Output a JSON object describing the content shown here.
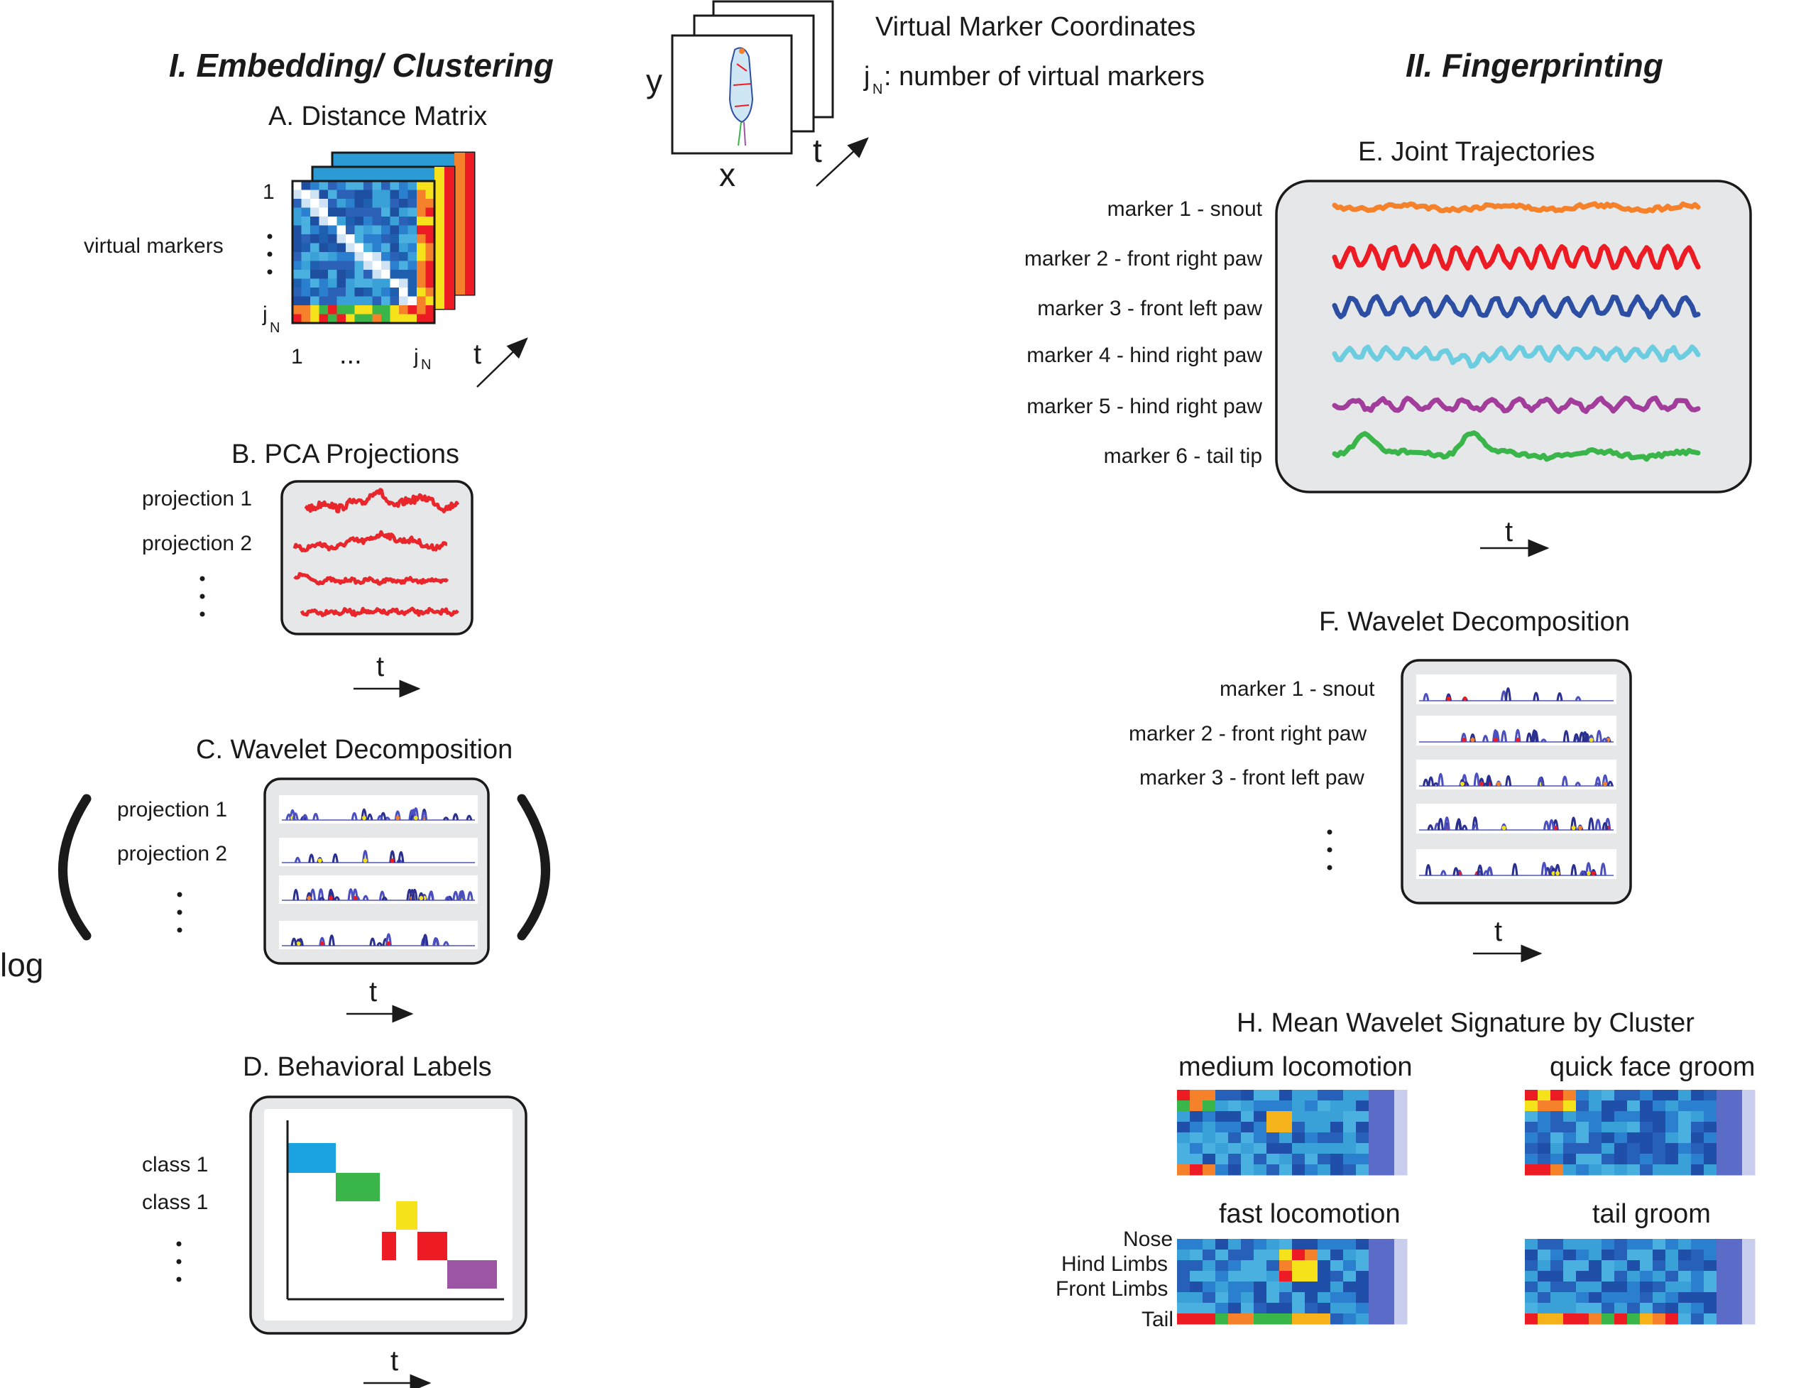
{
  "top": {
    "title": "Virtual Marker Coordinates",
    "jn_base": "j",
    "jn_sub": "N",
    "jn_desc": ": number of virtual markers",
    "axis_x": "x",
    "axis_y": "y",
    "axis_t": "t"
  },
  "section1": {
    "header": "I. Embedding/ Clustering"
  },
  "section2": {
    "header": "II. Fingerprinting"
  },
  "panelA": {
    "title": "A. Distance Matrix",
    "ylabel": "virtual markers",
    "row_first": "1",
    "col_first": "1",
    "jn_base": "j",
    "jn_sub": "N",
    "ellipsis": "...",
    "t": "t"
  },
  "panelB": {
    "title": "B. PCA Projections",
    "rows": [
      "projection 1",
      "projection 2"
    ],
    "t": "t",
    "color": "#e8262b"
  },
  "panelC": {
    "title": "C. Wavelet Decomposition",
    "rows": [
      "projection 1",
      "projection 2"
    ],
    "log": "log",
    "t": "t"
  },
  "panelD": {
    "title": "D. Behavioral Labels",
    "rows": [
      "class 1",
      "class 1"
    ],
    "t": "t",
    "colors": [
      "#1aa3e0",
      "#3ab54a",
      "#f5e21a",
      "#ed1c24",
      "#ed1c24",
      "#9b55a3"
    ]
  },
  "panelE": {
    "title": "E. Joint Trajectories",
    "markers": [
      {
        "label": "marker 1 - snout",
        "color": "#f5822a"
      },
      {
        "label": "marker 2 - front right paw",
        "color": "#ed1c24"
      },
      {
        "label": "marker 3 - front left paw",
        "color": "#2c4ea3"
      },
      {
        "label": "marker 4 - hind right paw",
        "color": "#6dcde0"
      },
      {
        "label": "marker 5 - hind right paw",
        "color": "#a23d9b"
      },
      {
        "label": "marker 6 - tail tip",
        "color": "#3ab54a"
      }
    ],
    "t": "t"
  },
  "panelF": {
    "title": "F. Wavelet Decomposition",
    "rows": [
      "marker 1 - snout",
      "marker 2 - front right paw",
      "marker 3 - front left paw"
    ],
    "t": "t"
  },
  "panelH": {
    "title": "H. Mean Wavelet Signature by Cluster",
    "clusters": [
      "medium locomotion",
      "quick face groom",
      "fast locomotion",
      "tail groom"
    ],
    "row_labels": [
      "Nose",
      "Hind Limbs",
      "Front Limbs",
      "Tail"
    ]
  }
}
